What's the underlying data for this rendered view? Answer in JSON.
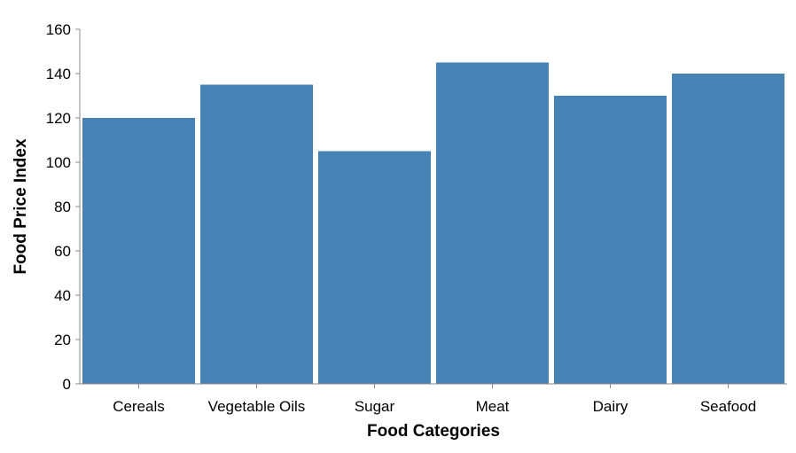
{
  "chart_data": {
    "type": "bar",
    "categories": [
      "Cereals",
      "Vegetable Oils",
      "Sugar",
      "Meat",
      "Dairy",
      "Seafood"
    ],
    "values": [
      120,
      135,
      105,
      145,
      130,
      140
    ],
    "title": "",
    "xlabel": "Food Categories",
    "ylabel": "Food Price Index",
    "ylim": [
      0,
      160
    ],
    "yticks": [
      0,
      20,
      40,
      60,
      80,
      100,
      120,
      140,
      160
    ],
    "grid": false,
    "bar_color": "#4682b4",
    "axis_color": "#888888"
  }
}
